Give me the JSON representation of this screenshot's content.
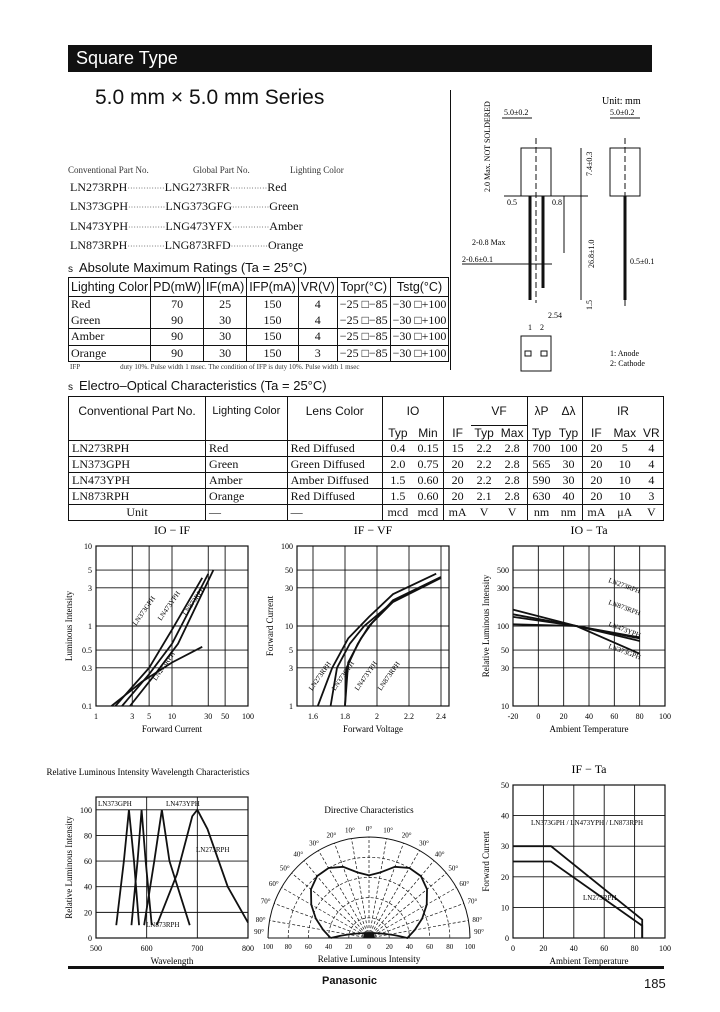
{
  "header": {
    "title": "Square Type",
    "series": "5.0 mm × 5.0 mm Series"
  },
  "parts": {
    "headers": [
      "Conventional Part No.",
      "Global Part No.",
      "Lighting Color"
    ],
    "rows": [
      [
        "LN273RPH",
        "LNG273RFR",
        "Red"
      ],
      [
        "LN373GPH",
        "LNG373GFG",
        "Green"
      ],
      [
        "LN473YPH",
        "LNG473YFX",
        "Amber"
      ],
      [
        "LN873RPH",
        "LNG873RFD",
        "Orange"
      ]
    ],
    "leader": "··············"
  },
  "abs_max": {
    "bullet": "s",
    "heading": "Absolute Maximum Ratings (Ta = 25°C)",
    "headers": [
      "Lighting Color",
      "PD(mW)",
      "IF(mA)",
      "IFP(mA)",
      "VR(V)",
      "Topr(°C)",
      "Tstg(°C)"
    ],
    "rows": [
      [
        "Red",
        "70",
        "25",
        "150",
        "4",
        "−25 □−85",
        "−30 □+100"
      ],
      [
        "Green",
        "90",
        "30",
        "150",
        "4",
        "−25 □−85",
        "−30 □+100"
      ],
      [
        "Amber",
        "90",
        "30",
        "150",
        "4",
        "−25 □−85",
        "−30 □+100"
      ],
      [
        "Orange",
        "90",
        "30",
        "150",
        "3",
        "−25 □−85",
        "−30 □+100"
      ]
    ],
    "footnote_label": "IFP",
    "footnote": "duty 10%. Pulse width 1 msec. The condition of IFP is duty 10%. Pulse width 1 msec"
  },
  "electro_optical": {
    "bullet": "s",
    "heading": "Electro–Optical Characteristics (Ta = 25°C)",
    "group_headers": {
      "part": "Conventional Part No.",
      "lighting": "Lighting Color",
      "lens": "Lens Color",
      "io": "IO",
      "vf": "VF",
      "lp": "λP",
      "dl": "Δλ",
      "ir": "IR"
    },
    "sub_headers": [
      "Typ",
      "Min",
      "IF",
      "Typ",
      "Max",
      "Typ",
      "Typ",
      "IF",
      "Max",
      "VR"
    ],
    "rows": [
      [
        "LN273RPH",
        "Red",
        "Red Diffused",
        "0.4",
        "0.15",
        "15",
        "2.2",
        "2.8",
        "700",
        "100",
        "20",
        "5",
        "4"
      ],
      [
        "LN373GPH",
        "Green",
        "Green Diffused",
        "2.0",
        "0.75",
        "20",
        "2.2",
        "2.8",
        "565",
        "30",
        "20",
        "10",
        "4"
      ],
      [
        "LN473YPH",
        "Amber",
        "Amber Diffused",
        "1.5",
        "0.60",
        "20",
        "2.2",
        "2.8",
        "590",
        "30",
        "20",
        "10",
        "4"
      ],
      [
        "LN873RPH",
        "Orange",
        "Red Diffused",
        "1.5",
        "0.60",
        "20",
        "2.1",
        "2.8",
        "630",
        "40",
        "20",
        "10",
        "3"
      ],
      [
        "Unit",
        "—",
        "—",
        "mcd",
        "mcd",
        "mA",
        "V",
        "V",
        "nm",
        "nm",
        "mA",
        "μA",
        "V"
      ]
    ]
  },
  "drawing": {
    "unit": "Unit: mm",
    "dims": [
      "5.0±0.2",
      "5.0±0.2",
      "7.4±0.3",
      "2.0 Max. NOT SOLDERED",
      "0.5",
      "0.8",
      "2-0.8 Max",
      "2-0.6±0.1",
      "26.8±1.0",
      "1.5",
      "2.54",
      "0.5±0.1",
      "1",
      "2"
    ],
    "legend": [
      "1: Anode",
      "2: Cathode"
    ]
  },
  "chart_data": [
    {
      "type": "line",
      "title": "IO − IF",
      "xlabel": "Forward Current",
      "ylabel": "Luminous Intensity",
      "xscale": "log",
      "yscale": "log",
      "xlim": [
        1,
        100
      ],
      "ylim": [
        0.1,
        10
      ],
      "xticks": [
        1,
        3,
        5,
        10,
        30,
        50,
        100
      ],
      "yticks": [
        0.1,
        0.3,
        0.5,
        1,
        3,
        5,
        10
      ],
      "grid": true,
      "series": [
        {
          "name": "LN373GPH",
          "points": [
            [
              1.8,
              0.1
            ],
            [
              5,
              0.3
            ],
            [
              10,
              0.9
            ],
            [
              25,
              4
            ]
          ]
        },
        {
          "name": "LN473YPH",
          "points": [
            [
              2.2,
              0.1
            ],
            [
              5,
              0.25
            ],
            [
              10,
              0.6
            ],
            [
              30,
              4.5
            ]
          ]
        },
        {
          "name": "LN873RPH",
          "points": [
            [
              2.8,
              0.1
            ],
            [
              6,
              0.25
            ],
            [
              12,
              0.6
            ],
            [
              35,
              5
            ]
          ]
        },
        {
          "name": "LN273RPH",
          "points": [
            [
              1.6,
              0.1
            ],
            [
              4,
              0.2
            ],
            [
              10,
              0.35
            ],
            [
              25,
              0.55
            ]
          ]
        }
      ]
    },
    {
      "type": "line",
      "title": "IF − VF",
      "xlabel": "Forward Voltage",
      "ylabel": "Forward Current",
      "xscale": "linear",
      "yscale": "log",
      "xlim": [
        1.5,
        2.45
      ],
      "ylim": [
        1,
        100
      ],
      "xticks": [
        1.6,
        1.8,
        2.0,
        2.2,
        2.4
      ],
      "yticks": [
        1,
        3,
        5,
        10,
        30,
        50,
        100
      ],
      "grid": true,
      "series": [
        {
          "name": "LN273RPH",
          "points": [
            [
              1.63,
              1
            ],
            [
              1.72,
              3
            ],
            [
              1.82,
              7
            ],
            [
              1.95,
              13
            ],
            [
              2.1,
              25
            ],
            [
              2.37,
              45
            ]
          ]
        },
        {
          "name": "LN373GPH",
          "points": [
            [
              1.71,
              1
            ],
            [
              1.75,
              3
            ],
            [
              1.83,
              6
            ],
            [
              1.92,
              10
            ],
            [
              2.1,
              20
            ],
            [
              2.4,
              40
            ]
          ]
        },
        {
          "name": "LN473YPH",
          "points": [
            [
              1.8,
              1
            ],
            [
              1.81,
              3
            ],
            [
              1.88,
              6
            ],
            [
              1.95,
              10
            ],
            [
              2.1,
              20
            ],
            [
              2.4,
              40
            ]
          ]
        },
        {
          "name": "LN873RPH",
          "points": [
            [
              1.8,
              1
            ],
            [
              1.82,
              3.5
            ],
            [
              1.9,
              7
            ],
            [
              1.97,
              11
            ],
            [
              2.1,
              21
            ],
            [
              2.4,
              41
            ]
          ]
        }
      ]
    },
    {
      "type": "line",
      "title": "IO − Ta",
      "xlabel": "Ambient Temperature",
      "ylabel": "Relative Luminous Intensity",
      "xscale": "linear",
      "yscale": "log",
      "xlim": [
        -20,
        100
      ],
      "ylim": [
        10,
        1000
      ],
      "xticks": [
        -20,
        0,
        20,
        40,
        60,
        80,
        100
      ],
      "yticks": [
        10,
        30,
        50,
        100,
        300,
        500
      ],
      "grid": true,
      "series": [
        {
          "name": "LN273RPH",
          "points": [
            [
              -20,
              160
            ],
            [
              30,
              100
            ],
            [
              80,
              70
            ]
          ]
        },
        {
          "name": "LN873RPH",
          "points": [
            [
              -20,
              130
            ],
            [
              30,
              100
            ],
            [
              80,
              72
            ]
          ]
        },
        {
          "name": "LN473YPH",
          "points": [
            [
              -20,
              105
            ],
            [
              30,
              100
            ],
            [
              80,
              65
            ]
          ]
        },
        {
          "name": "LN373GPH",
          "points": [
            [
              -20,
              140
            ],
            [
              30,
              100
            ],
            [
              80,
              45
            ]
          ]
        }
      ]
    },
    {
      "type": "line",
      "title": "Relative Luminous Intensity Wavelength Characteristics",
      "xlabel": "Wavelength",
      "ylabel": "Relative Luminous Intensity",
      "xscale": "linear",
      "yscale": "linear",
      "xlim": [
        500,
        800
      ],
      "ylim": [
        0,
        110
      ],
      "xticks": [
        500,
        600,
        700,
        800
      ],
      "yticks": [
        0,
        20,
        40,
        60,
        80,
        100
      ],
      "grid": true,
      "series": [
        {
          "name": "LN373GPH",
          "points": [
            [
              540,
              10
            ],
            [
              555,
              60
            ],
            [
              565,
              100
            ],
            [
              575,
              60
            ],
            [
              585,
              10
            ]
          ]
        },
        {
          "name": "LN473YPH",
          "points": [
            [
              570,
              10
            ],
            [
              582,
              60
            ],
            [
              590,
              100
            ],
            [
              598,
              60
            ],
            [
              610,
              10
            ]
          ]
        },
        {
          "name": "LN873RPH",
          "points": [
            [
              595,
              10
            ],
            [
              615,
              60
            ],
            [
              630,
              100
            ],
            [
              645,
              60
            ],
            [
              685,
              10
            ]
          ]
        },
        {
          "name": "LN273RPH",
          "points": [
            [
              620,
              10
            ],
            [
              660,
              50
            ],
            [
              690,
              95
            ],
            [
              700,
              100
            ],
            [
              720,
              85
            ],
            [
              760,
              40
            ],
            [
              800,
              12
            ]
          ]
        }
      ]
    },
    {
      "type": "polar",
      "title": "Directive Characteristics",
      "xlabel": "Relative Luminous Intensity",
      "angle_ticks": [
        0,
        10,
        20,
        30,
        40,
        50,
        60,
        70,
        80,
        90
      ],
      "radial_ticks": [
        20,
        40,
        60,
        80,
        100
      ],
      "xticks": [
        100,
        80,
        60,
        40,
        20,
        0,
        20,
        40,
        60,
        80,
        100
      ],
      "series": [
        {
          "points": [
            [
              0,
              62
            ],
            [
              10,
              66
            ],
            [
              20,
              75
            ],
            [
              30,
              80
            ],
            [
              40,
              80
            ],
            [
              50,
              75
            ],
            [
              60,
              66
            ],
            [
              70,
              56
            ],
            [
              80,
              46
            ],
            [
              90,
              38
            ]
          ]
        }
      ]
    },
    {
      "type": "line",
      "title": "IF − Ta",
      "xlabel": "Ambient Temperature",
      "ylabel": "Forward Current",
      "xscale": "linear",
      "yscale": "linear",
      "xlim": [
        0,
        100
      ],
      "ylim": [
        0,
        50
      ],
      "xticks": [
        0,
        20,
        40,
        60,
        80,
        100
      ],
      "yticks": [
        0,
        10,
        20,
        30,
        40,
        50
      ],
      "grid": true,
      "series": [
        {
          "name": "LN373GPH / LN473YPH / LN873RPH",
          "points": [
            [
              0,
              30
            ],
            [
              25,
              30
            ],
            [
              85,
              6
            ],
            [
              85,
              0
            ]
          ]
        },
        {
          "name": "LN273RPH",
          "points": [
            [
              0,
              25
            ],
            [
              25,
              25
            ],
            [
              85,
              4
            ],
            [
              85,
              0
            ]
          ]
        }
      ]
    }
  ],
  "footer": {
    "brand": "Panasonic",
    "page": "185"
  }
}
